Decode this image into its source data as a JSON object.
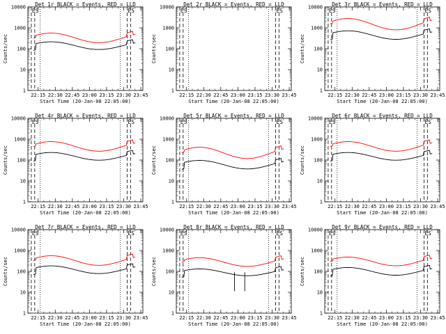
{
  "chart_data": [
    {
      "type": "line",
      "title": "Det 1r BLACK = Events, RED = LLD",
      "xlabel": "Start Time (20-Jan-08 22:05:00)",
      "ylabel": "Counts/sec",
      "ylim": [
        1,
        10000
      ],
      "xlim": [
        22.1,
        23.78
      ],
      "xticks": [
        "22:15",
        "22:30",
        "22:45",
        "23:00",
        "23:15",
        "23:30",
        "23:45"
      ],
      "yticks": [
        "1",
        "10",
        "100",
        "1000",
        "10000"
      ],
      "markers": [
        "E",
        "S",
        "E",
        "S"
      ],
      "has_data": true,
      "red_level": 330,
      "red_amp": 1.8,
      "black_level": 140,
      "black_amp": 1.7,
      "spikes": []
    },
    {
      "type": "line",
      "title": "Det 2r BLACK = Events, RED = LLD",
      "xlabel": "Start Time (20-Jan-08 22:05:00)",
      "ylabel": "Counts/sec",
      "ylim": [
        1,
        10000
      ],
      "xlim": [
        22.1,
        23.78
      ],
      "xticks": [
        "22:15",
        "22:30",
        "22:45",
        "23:00",
        "23:15",
        "23:30",
        "23:45"
      ],
      "yticks": [
        "1",
        "10",
        "100",
        "1000",
        "10000"
      ],
      "markers": [
        "E",
        "S",
        "E",
        "S"
      ],
      "has_data": false,
      "red_level": 0,
      "red_amp": 0,
      "black_level": 0,
      "black_amp": 0,
      "spikes": []
    },
    {
      "type": "line",
      "title": "Det 3r BLACK = Events, RED = LLD",
      "xlabel": "Start Time (20-Jan-08 22:05:00)",
      "ylabel": "Counts/sec",
      "ylim": [
        1,
        10000
      ],
      "xlim": [
        22.1,
        23.78
      ],
      "xticks": [
        "22:15",
        "22:30",
        "22:45",
        "23:00",
        "23:15",
        "23:30",
        "23:45"
      ],
      "yticks": [
        "1",
        "10",
        "100",
        "1000",
        "10000"
      ],
      "markers": [
        "E",
        "S",
        "E",
        "S"
      ],
      "has_data": true,
      "red_level": 1500,
      "red_amp": 2.0,
      "black_level": 450,
      "black_amp": 1.8,
      "spikes": []
    },
    {
      "type": "line",
      "title": "Det 4r BLACK = Events, RED = LLD",
      "xlabel": "Start Time (20-Jan-08 22:05:00)",
      "ylabel": "Counts/sec",
      "ylim": [
        1,
        10000
      ],
      "xlim": [
        22.1,
        23.78
      ],
      "xticks": [
        "22:15",
        "22:30",
        "22:45",
        "23:00",
        "23:15",
        "23:30",
        "23:45"
      ],
      "yticks": [
        "1",
        "10",
        "100",
        "1000",
        "10000"
      ],
      "markers": [
        "E",
        "S",
        "E",
        "S"
      ],
      "has_data": true,
      "red_level": 450,
      "red_amp": 1.8,
      "black_level": 150,
      "black_amp": 1.7,
      "spikes": []
    },
    {
      "type": "line",
      "title": "Det 5r BLACK = Events, RED = LLD",
      "xlabel": "Start Time (20-Jan-08 22:05:00)",
      "ylabel": "Counts/sec",
      "ylim": [
        1,
        10000
      ],
      "xlim": [
        22.1,
        23.78
      ],
      "xticks": [
        "22:15",
        "22:30",
        "22:45",
        "23:00",
        "23:15",
        "23:30",
        "23:45"
      ],
      "yticks": [
        "1",
        "10",
        "100",
        "1000",
        "10000"
      ],
      "markers": [
        "E",
        "S",
        "E",
        "S"
      ],
      "has_data": true,
      "red_level": 220,
      "red_amp": 2.0,
      "black_level": 60,
      "black_amp": 1.8,
      "spikes": []
    },
    {
      "type": "line",
      "title": "Det 6r BLACK = Events, RED = LLD",
      "xlabel": "Start Time (20-Jan-08 22:05:00)",
      "ylabel": "Counts/sec",
      "ylim": [
        1,
        10000
      ],
      "xlim": [
        22.1,
        23.78
      ],
      "xticks": [
        "22:15",
        "22:30",
        "22:45",
        "23:00",
        "23:15",
        "23:30",
        "23:45"
      ],
      "yticks": [
        "1",
        "10",
        "100",
        "1000",
        "10000"
      ],
      "markers": [
        "E",
        "S",
        "E",
        "S"
      ],
      "has_data": true,
      "red_level": 450,
      "red_amp": 1.8,
      "black_level": 150,
      "black_amp": 1.7,
      "spikes": []
    },
    {
      "type": "line",
      "title": "Det 7r BLACK = Events, RED = LLD",
      "xlabel": "Start Time (20-Jan-08 22:05:00)",
      "ylabel": "Counts/sec",
      "ylim": [
        1,
        10000
      ],
      "xlim": [
        22.1,
        23.78
      ],
      "xticks": [
        "22:15",
        "22:30",
        "22:45",
        "23:00",
        "23:15",
        "23:30",
        "23:45"
      ],
      "yticks": [
        "1",
        "10",
        "100",
        "1000",
        "10000"
      ],
      "markers": [
        "E",
        "S",
        "E",
        "S"
      ],
      "has_data": true,
      "red_level": 330,
      "red_amp": 1.8,
      "black_level": 120,
      "black_amp": 1.7,
      "spikes": []
    },
    {
      "type": "line",
      "title": "Det 8r BLACK = Events, RED = LLD",
      "xlabel": "Start Time (20-Jan-08 22:05:00)",
      "ylabel": "Counts/sec",
      "ylim": [
        1,
        10000
      ],
      "xlim": [
        22.1,
        23.78
      ],
      "xticks": [
        "22:15",
        "22:30",
        "22:45",
        "23:00",
        "23:15",
        "23:30",
        "23:45"
      ],
      "yticks": [
        "1",
        "10",
        "100",
        "1000",
        "10000"
      ],
      "markers": [
        "E",
        "S",
        "E",
        "S"
      ],
      "has_data": true,
      "red_level": 280,
      "red_amp": 1.7,
      "black_level": 90,
      "black_amp": 1.6,
      "spikes": [
        22.95,
        23.1
      ]
    },
    {
      "type": "line",
      "title": "Det 9r BLACK = Events, RED = LLD",
      "xlabel": "Start Time (20-Jan-08 22:05:00)",
      "ylabel": "Counts/sec",
      "ylim": [
        1,
        10000
      ],
      "xlim": [
        22.1,
        23.78
      ],
      "xticks": [
        "22:15",
        "22:30",
        "22:45",
        "23:00",
        "23:15",
        "23:30",
        "23:45"
      ],
      "yticks": [
        "1",
        "10",
        "100",
        "1000",
        "10000"
      ],
      "markers": [
        "E",
        "S",
        "E",
        "S"
      ],
      "has_data": true,
      "red_level": 300,
      "red_amp": 1.7,
      "black_level": 100,
      "black_amp": 1.7,
      "spikes": []
    }
  ],
  "colors": {
    "events": "#000000",
    "lld": "#ff0000"
  },
  "markers_x": [
    22.15,
    22.2,
    23.55,
    23.6
  ],
  "dotted_x": [
    22.28,
    23.45
  ]
}
